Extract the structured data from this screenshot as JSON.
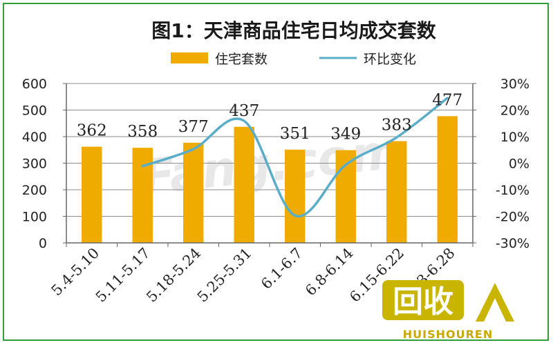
{
  "chart_data": {
    "type": "bar",
    "title": "图1：天津商品住宅日均成交套数",
    "categories": [
      "5.4-5.10",
      "5.11-5.17",
      "5.18-5.24",
      "5.25-5.31",
      "6.1-6.7",
      "6.8-6.14",
      "6.15-6.22",
      "6.23-6.28"
    ],
    "series": [
      {
        "name": "住宅套数",
        "type": "bar",
        "axis": "left",
        "values": [
          362,
          358,
          377,
          437,
          351,
          349,
          383,
          477
        ],
        "color": "#f0ab00"
      },
      {
        "name": "环比变化",
        "type": "line",
        "axis": "right",
        "values": [
          null,
          -1.1,
          5.3,
          15.9,
          -19.7,
          -0.6,
          9.7,
          24.5
        ],
        "color": "#5aadc9"
      }
    ],
    "data_labels": [
      "362",
      "358",
      "377",
      "437",
      "351",
      "349",
      "383",
      "477"
    ],
    "y_left": {
      "ylim": [
        0,
        600
      ],
      "ticks": [
        "0",
        "100",
        "200",
        "300",
        "400",
        "500",
        "600"
      ]
    },
    "y_right": {
      "ylim": [
        -30,
        30
      ],
      "ticks": [
        "-30%",
        "-20%",
        "-10%",
        "0%",
        "10%",
        "20%",
        "30%"
      ]
    },
    "grid": true,
    "legend": "top"
  },
  "watermark": "Fang.com",
  "logo": {
    "main": "回收",
    "sub": "HUISHOUREN"
  }
}
